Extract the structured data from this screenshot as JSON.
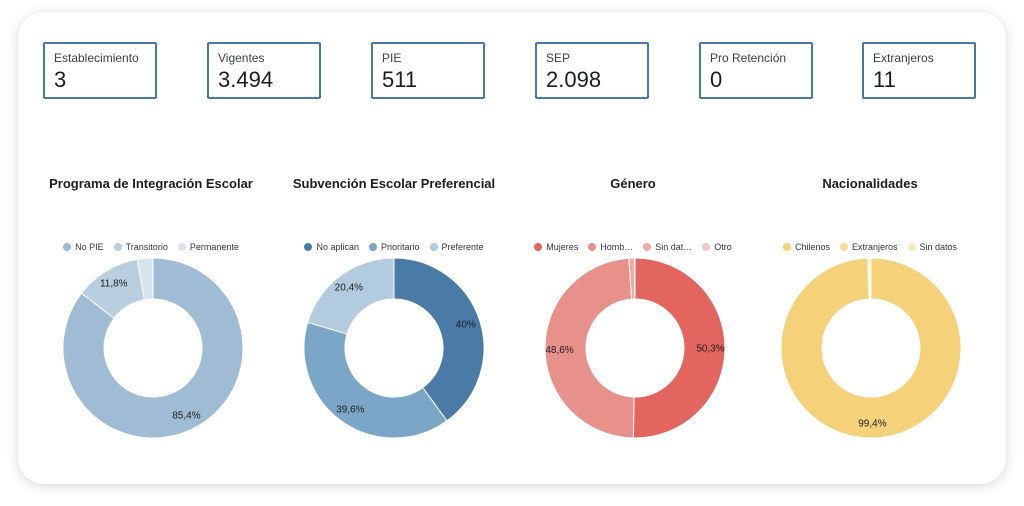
{
  "kpis": [
    {
      "label": "Establecimiento",
      "value": "3"
    },
    {
      "label": "Vigentes",
      "value": "3.494"
    },
    {
      "label": "PIE",
      "value": "511"
    },
    {
      "label": "SEP",
      "value": "2.098"
    },
    {
      "label": "Pro Retención",
      "value": "0"
    },
    {
      "label": "Extranjeros",
      "value": "11"
    }
  ],
  "chart_data": [
    {
      "type": "pie",
      "title": "Programa de Integración Escolar",
      "legend_position": "top",
      "categories": [
        "No PIE",
        "Transitorio",
        "Permanente"
      ],
      "legend_labels": [
        "No PIE",
        "Transitorio",
        "Permanente"
      ],
      "values": [
        85.4,
        11.8,
        2.8
      ],
      "data_labels": [
        "85,4%",
        "11,8%",
        ""
      ],
      "colors": [
        "#9fbcd4",
        "#b9cfe0",
        "#d7e4ee"
      ]
    },
    {
      "type": "pie",
      "title": "Subvención Escolar Preferencial",
      "legend_position": "top",
      "categories": [
        "No aplican",
        "Prioritario",
        "Preferente"
      ],
      "legend_labels": [
        "No aplican",
        "Prioritario",
        "Preferente"
      ],
      "values": [
        40,
        39.6,
        20.4
      ],
      "data_labels": [
        "40%",
        "39,6%",
        "20,4%"
      ],
      "colors": [
        "#4a7ba7",
        "#7ca6c8",
        "#b3cbde"
      ]
    },
    {
      "type": "pie",
      "title": "Género",
      "legend_position": "top",
      "categories": [
        "Mujeres",
        "Hombres",
        "Sin datos",
        "Otro"
      ],
      "legend_labels": [
        "Mujeres",
        "Homb…",
        "Sin dat…",
        "Otro"
      ],
      "values": [
        50.3,
        48.6,
        1.0,
        0.1
      ],
      "data_labels": [
        "50,3%",
        "48,6%",
        "",
        ""
      ],
      "colors": [
        "#e2665f",
        "#e8908a",
        "#eeaaa6",
        "#f2c7c4"
      ]
    },
    {
      "type": "pie",
      "title": "Nacionalidades",
      "legend_position": "top",
      "categories": [
        "Chilenos",
        "Extranjeros",
        "Sin datos"
      ],
      "legend_labels": [
        "Chilenos",
        "Extranjeros",
        "Sin datos"
      ],
      "values": [
        99.4,
        0.3,
        0.3
      ],
      "data_labels": [
        "99,4%",
        "",
        ""
      ],
      "colors": [
        "#f5d27a",
        "#f7dc93",
        "#faeabf"
      ]
    }
  ]
}
